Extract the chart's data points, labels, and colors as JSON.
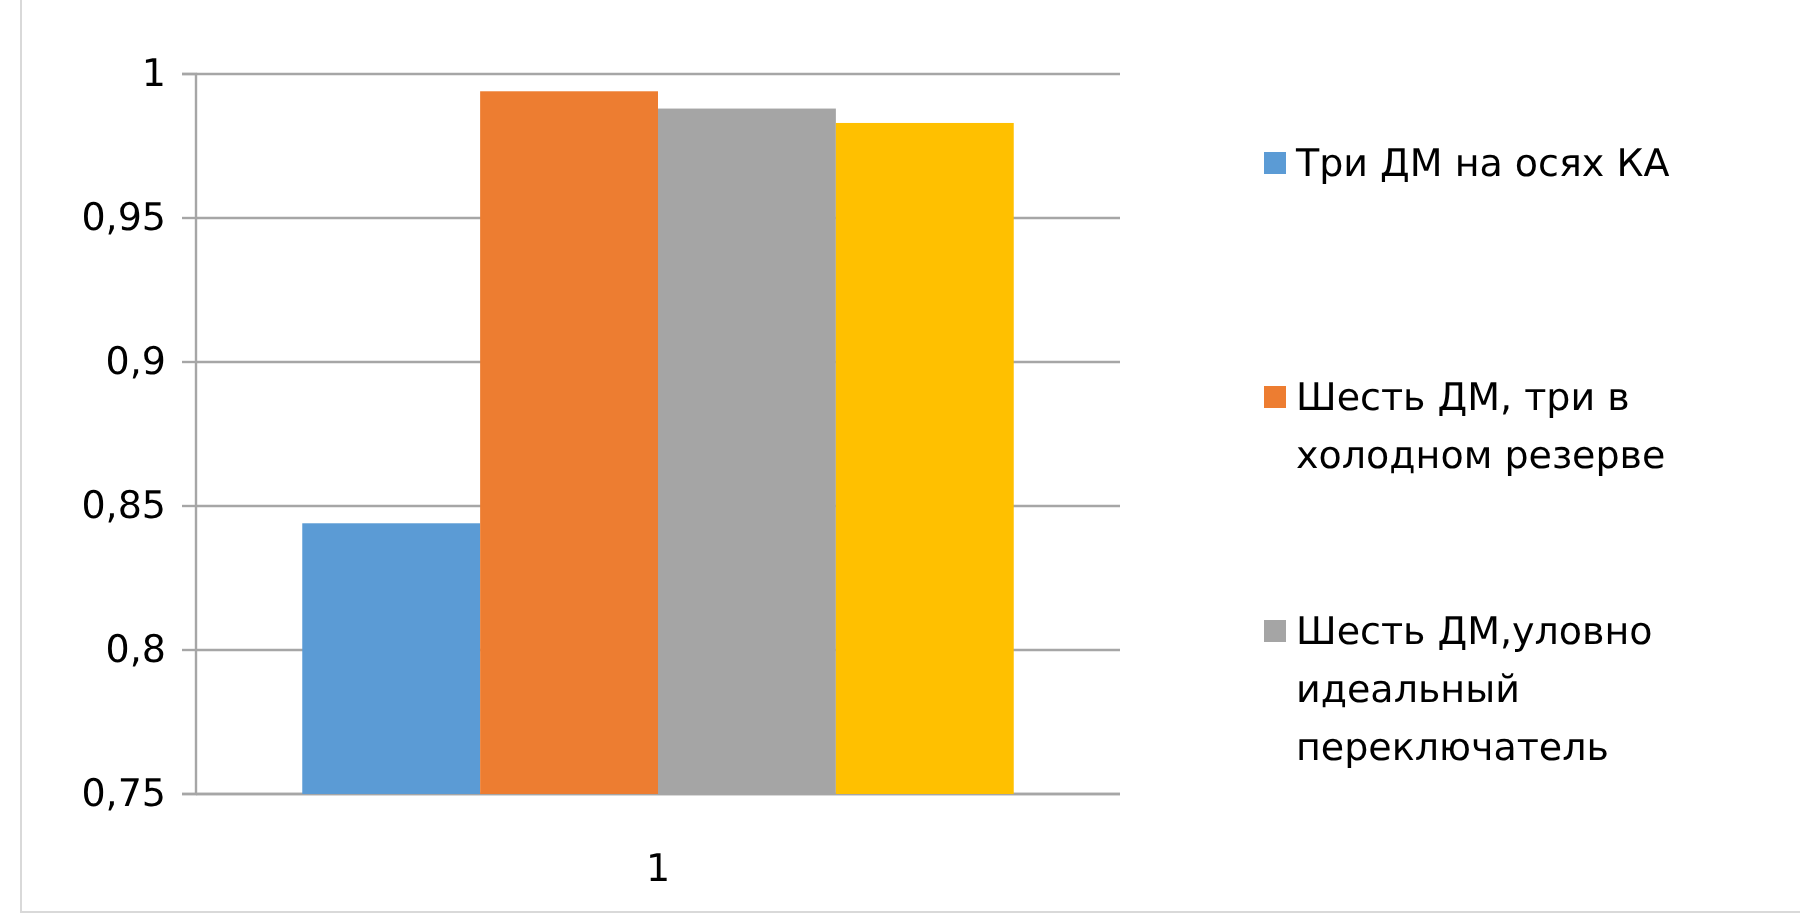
{
  "chart_data": {
    "type": "bar",
    "categories": [
      "1"
    ],
    "series": [
      {
        "name": "Три ДМ на осях КА",
        "color": "#5b9bd5",
        "values": [
          0.844
        ]
      },
      {
        "name": "Шесть ДМ, три в холодном резерве",
        "color": "#ed7d31",
        "values": [
          0.994
        ]
      },
      {
        "name": "Шесть ДМ,уловно идеальный переключатель",
        "color": "#a5a5a5",
        "values": [
          0.988
        ]
      },
      {
        "color": "#ffc000",
        "values": [
          0.983
        ]
      }
    ],
    "ylim": [
      0.75,
      1
    ],
    "yticks": [
      {
        "value": 0.75,
        "label": "0,75"
      },
      {
        "value": 0.8,
        "label": "0,8"
      },
      {
        "value": 0.85,
        "label": "0,85"
      },
      {
        "value": 0.9,
        "label": "0,9"
      },
      {
        "value": 0.95,
        "label": "0,95"
      },
      {
        "value": 1,
        "label": "1"
      }
    ],
    "grid": "y",
    "legend": "right"
  }
}
